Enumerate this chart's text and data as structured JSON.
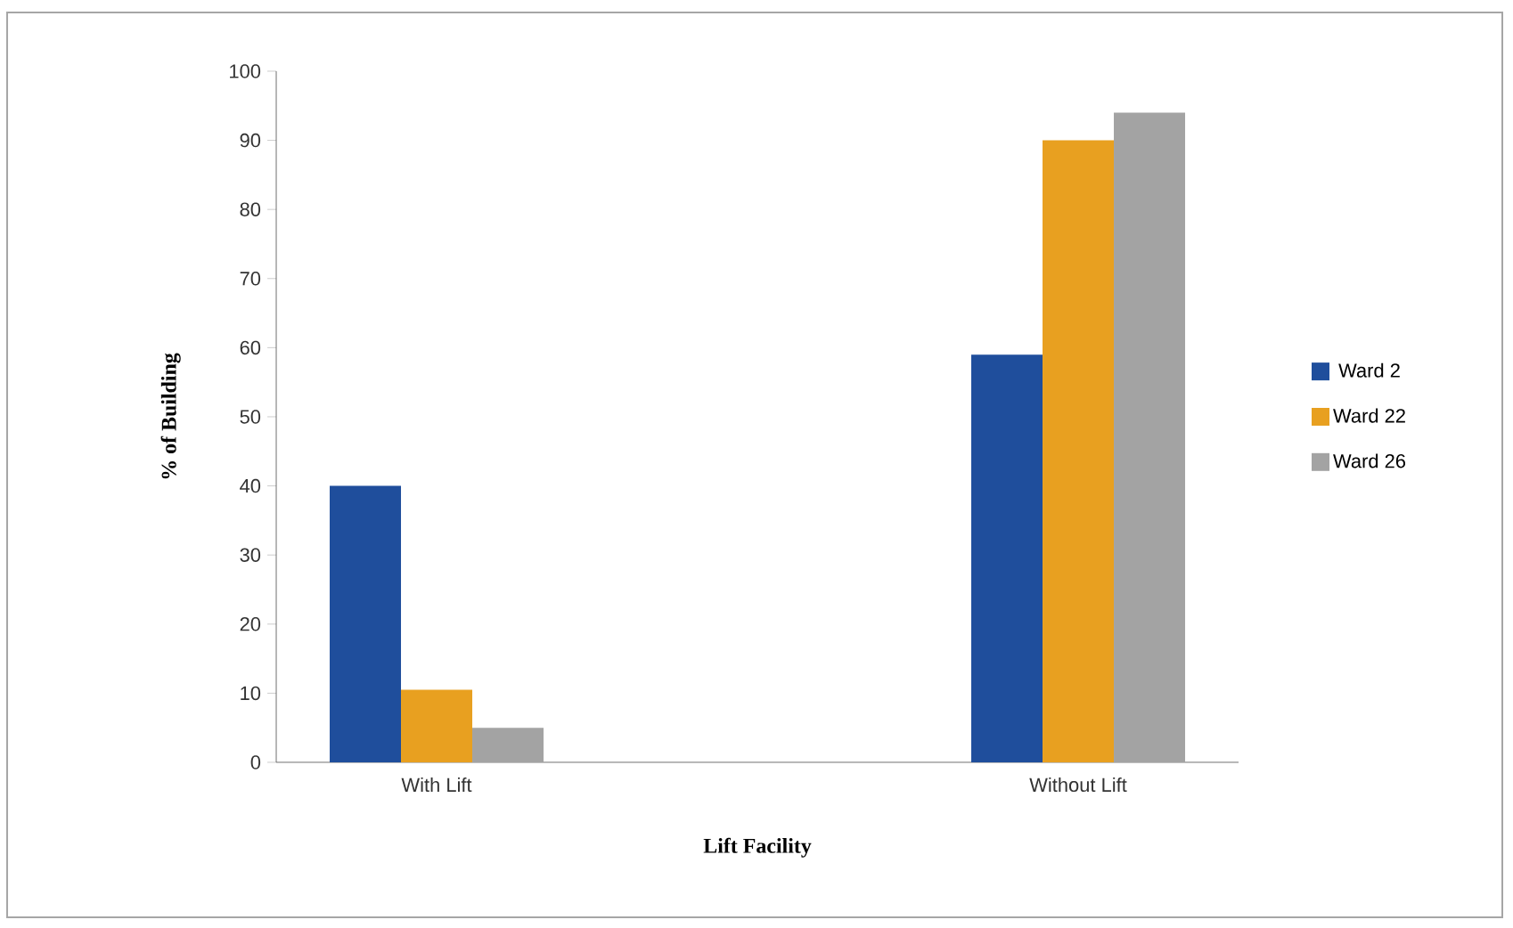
{
  "chart_data": {
    "type": "bar",
    "xlabel": "Lift Facility",
    "ylabel": "% of Building",
    "categories": [
      "With Lift",
      null,
      "Without Lift"
    ],
    "series": [
      {
        "name": "Ward 2",
        "color": "#1f4e9c",
        "values": [
          40,
          null,
          59
        ]
      },
      {
        "name": "Ward 22",
        "color": "#e8a020",
        "values": [
          10.5,
          null,
          90
        ]
      },
      {
        "name": "Ward 26",
        "color": "#a3a3a3",
        "values": [
          5,
          null,
          94
        ]
      }
    ],
    "ylim": [
      0,
      100
    ],
    "yticks": [
      0,
      10,
      20,
      30,
      40,
      50,
      60,
      70,
      80,
      90,
      100
    ],
    "grid": false,
    "legend": "right"
  }
}
